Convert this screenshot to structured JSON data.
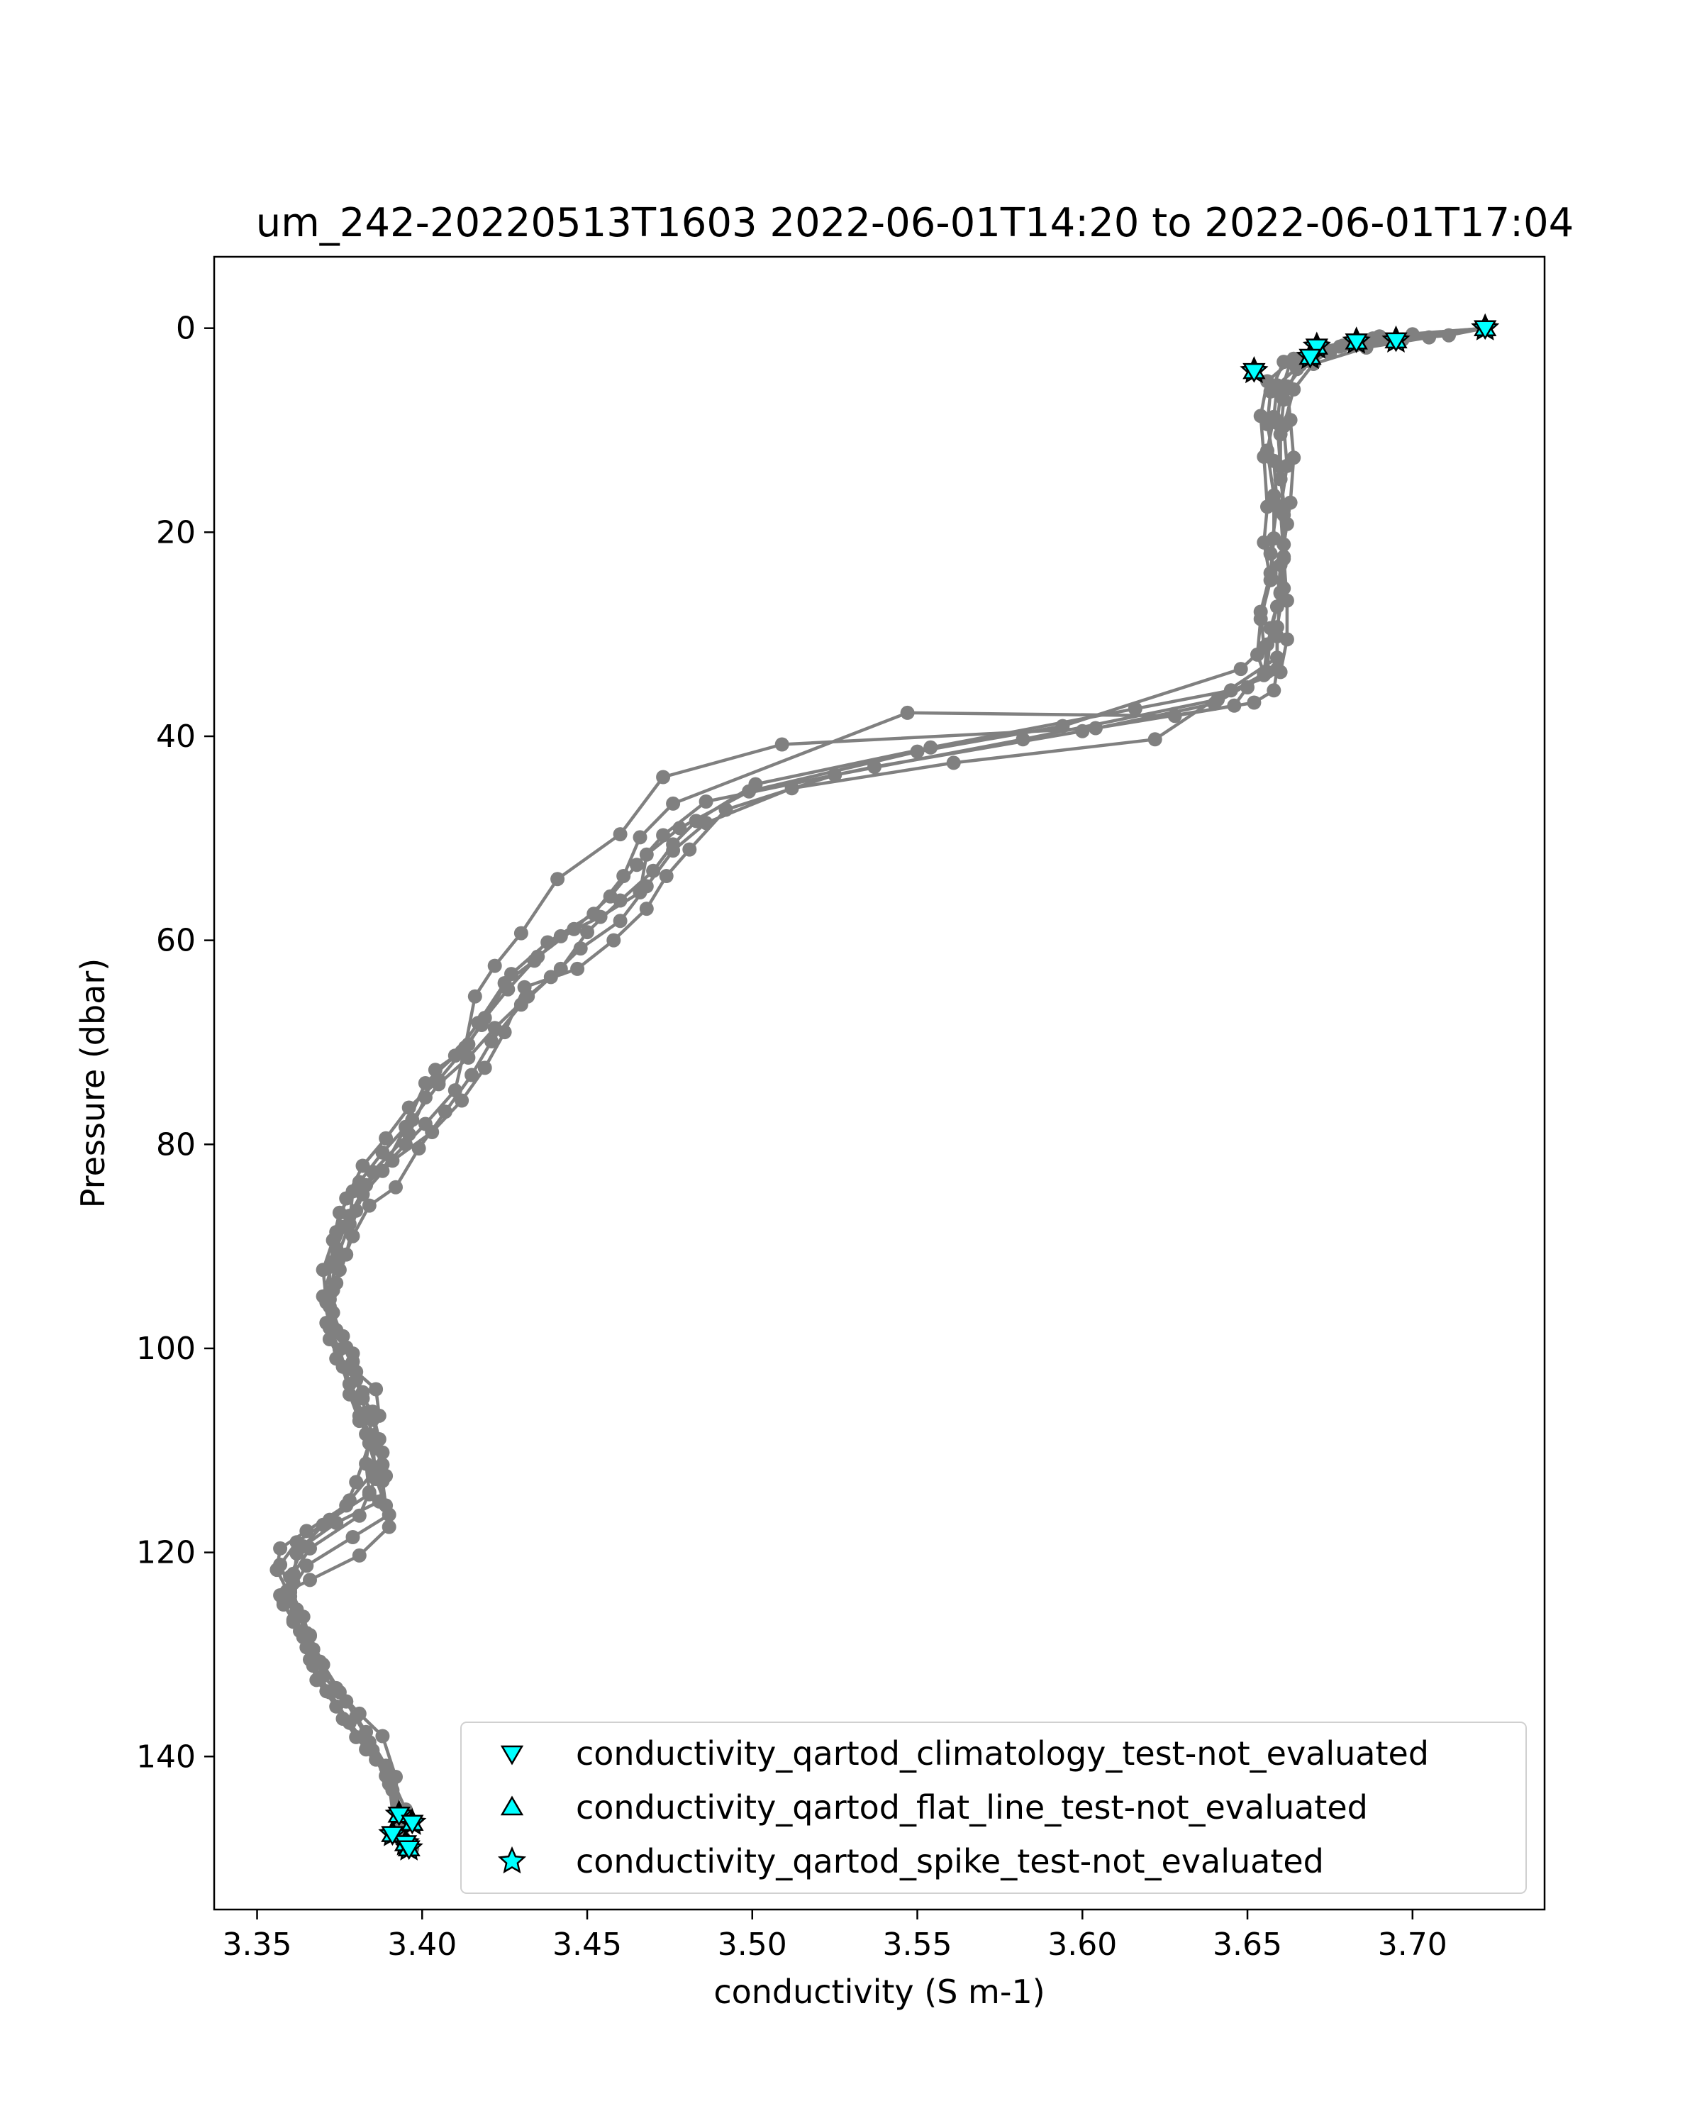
{
  "chart_data": {
    "type": "line",
    "title": "um_242-20220513T1603 2022-06-01T14:20 to 2022-06-01T17:04",
    "xlabel": "conductivity (S m-1)",
    "ylabel": "Pressure (dbar)",
    "xlim": [
      3.337,
      3.74
    ],
    "ylim": [
      155,
      -7
    ],
    "y_inverted": true,
    "grid": false,
    "x_ticks": [
      "3.35",
      "3.40",
      "3.45",
      "3.50",
      "3.55",
      "3.60",
      "3.65",
      "3.70"
    ],
    "y_ticks": [
      "0",
      "20",
      "40",
      "60",
      "80",
      "100",
      "120",
      "140"
    ],
    "colors": {
      "profile_line": "#808080",
      "flag_marker_fill": "#00ffff",
      "flag_marker_edge": "#000000"
    },
    "legend": {
      "placement": "lower-right",
      "entries": [
        {
          "label": "conductivity_qartod_climatology_test-not_evaluated",
          "marker": "triangle-down-icon"
        },
        {
          "label": "conductivity_qartod_flat_line_test-not_evaluated",
          "marker": "triangle-up-icon"
        },
        {
          "label": "conductivity_qartod_spike_test-not_evaluated",
          "marker": "star-icon"
        }
      ]
    },
    "series": [
      {
        "x": [
          3.722,
          3.711,
          3.683,
          3.664,
          3.656,
          3.654,
          3.655,
          3.656,
          3.655,
          3.657,
          3.654,
          3.653,
          3.655,
          3.65,
          3.646,
          3.604,
          3.509,
          3.473,
          3.46,
          3.441,
          3.43,
          3.422,
          3.416,
          3.413,
          3.41,
          3.401,
          3.395,
          3.383,
          3.378,
          3.374,
          3.373,
          3.371,
          3.375,
          3.378,
          3.381,
          3.383,
          3.386,
          3.388,
          3.389,
          3.39,
          3.381,
          3.366,
          3.359,
          3.357,
          3.362,
          3.366,
          3.37,
          3.377,
          3.384,
          3.39,
          3.396
        ],
        "y": [
          0,
          0.7,
          1.5,
          3.0,
          5.2,
          8.6,
          12.6,
          17.5,
          21.0,
          24.7,
          28.5,
          32.0,
          33.8,
          35.2,
          37.0,
          39.2,
          40.8,
          44.0,
          49.6,
          54.0,
          59.3,
          62.5,
          65.5,
          70.5,
          74.7,
          78.0,
          80.0,
          84.0,
          87.0,
          90.2,
          94.3,
          97.5,
          100.1,
          103.5,
          106.6,
          108.4,
          111.7,
          113.0,
          115.4,
          117.5,
          120.3,
          122.7,
          123.8,
          124.2,
          126.0,
          128.2,
          131.0,
          134.6,
          138.6,
          142.0,
          148.5
        ]
      },
      {
        "x": [
          3.722,
          3.695,
          3.678,
          3.661,
          3.657,
          3.656,
          3.658,
          3.659,
          3.657,
          3.66,
          3.659,
          3.659,
          3.658,
          3.652,
          3.628,
          3.547,
          3.476,
          3.466,
          3.461,
          3.452,
          3.438,
          3.427,
          3.418,
          3.412,
          3.404,
          3.401,
          3.396,
          3.385,
          3.38,
          3.377,
          3.374,
          3.373,
          3.377,
          3.38,
          3.383,
          3.385,
          3.385,
          3.386,
          3.39,
          3.379,
          3.365,
          3.36,
          3.361,
          3.364,
          3.367,
          3.372,
          3.378,
          3.384,
          3.389,
          3.394
        ],
        "y": [
          0,
          1.2,
          1.8,
          3.3,
          6.2,
          9.4,
          13.0,
          17.4,
          22.1,
          25.9,
          30.2,
          33.4,
          35.5,
          36.7,
          38.0,
          37.7,
          46.6,
          49.9,
          53.7,
          57.4,
          60.2,
          63.3,
          68.3,
          70.9,
          72.7,
          75.4,
          79.0,
          82.7,
          86.5,
          90.8,
          93.6,
          96.5,
          99.9,
          103.1,
          106.3,
          108.5,
          109.2,
          112.8,
          116.3,
          118.5,
          121.3,
          123.9,
          126.6,
          128.3,
          131.1,
          133.7,
          136.7,
          139.2,
          141.9,
          147.0
        ]
      },
      {
        "x": [
          3.722,
          3.688,
          3.673,
          3.666,
          3.659,
          3.658,
          3.656,
          3.658,
          3.658,
          3.657,
          3.654,
          3.655,
          3.648,
          3.594,
          3.55,
          3.499,
          3.478,
          3.468,
          3.466,
          3.454,
          3.442,
          3.434,
          3.425,
          3.417,
          3.41,
          3.401,
          3.395,
          3.388,
          3.379,
          3.378,
          3.374,
          3.372,
          3.372,
          3.379,
          3.38,
          3.386,
          3.387,
          3.384,
          3.38,
          3.377,
          3.365,
          3.357,
          3.356,
          3.36,
          3.365,
          3.369,
          3.375,
          3.381,
          3.388,
          3.392,
          3.393
        ],
        "y": [
          0,
          1.0,
          1.8,
          3.6,
          5.6,
          8.7,
          12.0,
          16.4,
          20.6,
          24.0,
          27.8,
          31.3,
          33.4,
          39.0,
          41.5,
          45.4,
          49.0,
          51.6,
          55.3,
          57.7,
          59.6,
          62.0,
          64.2,
          68.1,
          71.3,
          74.0,
          78.3,
          82.6,
          84.6,
          87.8,
          91.3,
          94.8,
          98.0,
          100.5,
          102.3,
          104.0,
          106.6,
          109.3,
          113.1,
          115.4,
          117.9,
          119.6,
          121.7,
          124.3,
          127.9,
          130.8,
          133.7,
          135.8,
          138.0,
          142.0,
          145.7
        ]
      },
      {
        "x": [
          3.722,
          3.69,
          3.671,
          3.663,
          3.66,
          3.659,
          3.66,
          3.661,
          3.661,
          3.66,
          3.657,
          3.656,
          3.641,
          3.582,
          3.525,
          3.492,
          3.481,
          3.474,
          3.468,
          3.458,
          3.447,
          3.431,
          3.425,
          3.419,
          3.412,
          3.403,
          3.391,
          3.382,
          3.376,
          3.373,
          3.37,
          3.372,
          3.374,
          3.378,
          3.382,
          3.384,
          3.383,
          3.384,
          3.381,
          3.366,
          3.361,
          3.358,
          3.361,
          3.365,
          3.368,
          3.374,
          3.38,
          3.386,
          3.391,
          3.397
        ],
        "y": [
          0,
          0.8,
          2.1,
          3.3,
          6.5,
          9.3,
          13.6,
          18.3,
          22.6,
          26.0,
          29.4,
          33.7,
          36.4,
          40.3,
          43.8,
          47.2,
          51.1,
          53.7,
          56.9,
          60.0,
          62.8,
          64.6,
          69.0,
          72.5,
          75.7,
          78.8,
          81.6,
          84.9,
          88.1,
          91.5,
          94.9,
          97.7,
          101.0,
          103.5,
          106.4,
          108.6,
          111.3,
          114.1,
          116.4,
          119.6,
          122.1,
          124.8,
          126.8,
          129.3,
          132.5,
          135.1,
          138.1,
          140.3,
          143.3,
          149.0
        ]
      },
      {
        "x": [
          3.722,
          3.7,
          3.679,
          3.668,
          3.662,
          3.663,
          3.664,
          3.663,
          3.661,
          3.661,
          3.659,
          3.659,
          3.622,
          3.561,
          3.512,
          3.486,
          3.476,
          3.468,
          3.46,
          3.448,
          3.439,
          3.43,
          3.421,
          3.415,
          3.407,
          3.399,
          3.392,
          3.384,
          3.379,
          3.375,
          3.372,
          3.372,
          3.376,
          3.378,
          3.381,
          3.386,
          3.388,
          3.389,
          3.387,
          3.374,
          3.364,
          3.36,
          3.358,
          3.363,
          3.366,
          3.371,
          3.376,
          3.383,
          3.389,
          3.393
        ],
        "y": [
          0,
          0.6,
          1.7,
          3.2,
          5.7,
          9.0,
          12.7,
          17.1,
          21.2,
          25.5,
          29.3,
          32.3,
          40.3,
          42.6,
          45.1,
          48.5,
          51.2,
          54.7,
          58.1,
          60.8,
          63.6,
          66.3,
          69.9,
          73.2,
          76.8,
          80.4,
          84.2,
          86.0,
          89.0,
          92.3,
          95.9,
          99.1,
          101.8,
          104.5,
          107.1,
          109.8,
          111.4,
          112.5,
          115.0,
          117.1,
          119.4,
          122.4,
          125.1,
          127.7,
          130.5,
          133.6,
          136.3,
          139.3,
          141.1,
          146.5
        ]
      },
      {
        "x": [
          3.722,
          3.705,
          3.686,
          3.67,
          3.664,
          3.661,
          3.662,
          3.66,
          3.661,
          3.662,
          3.662,
          3.66,
          3.645,
          3.616,
          3.554,
          3.501,
          3.483,
          3.476,
          3.47,
          3.46,
          3.45,
          3.442,
          3.432,
          3.422,
          3.414,
          3.405,
          3.397,
          3.388,
          3.381,
          3.375,
          3.373,
          3.37,
          3.371,
          3.376,
          3.379,
          3.382,
          3.385,
          3.388,
          3.385,
          3.378,
          3.37,
          3.362,
          3.361,
          3.362,
          3.366,
          3.369,
          3.374,
          3.38,
          3.385,
          3.39,
          3.392
        ],
        "y": [
          0,
          0.9,
          1.9,
          3.5,
          6.0,
          9.6,
          13.5,
          17.8,
          22.4,
          26.7,
          30.5,
          33.7,
          35.5,
          37.3,
          41.1,
          44.7,
          48.3,
          50.6,
          53.2,
          56.1,
          59.2,
          62.8,
          65.5,
          68.6,
          71.5,
          74.1,
          77.6,
          80.8,
          83.7,
          86.7,
          89.4,
          92.3,
          95.5,
          98.8,
          102.1,
          104.3,
          107.0,
          110.2,
          112.2,
          114.9,
          117.3,
          120.1,
          123.0,
          125.6,
          128.1,
          130.7,
          133.3,
          136.1,
          139.4,
          142.7,
          147.8
        ]
      },
      {
        "x": [
          3.722,
          3.697,
          3.675,
          3.665,
          3.661,
          3.66,
          3.66,
          3.662,
          3.66,
          3.659,
          3.656,
          3.655,
          3.64,
          3.6,
          3.537,
          3.486,
          3.473,
          3.465,
          3.457,
          3.446,
          3.435,
          3.426,
          3.419,
          3.414,
          3.405,
          3.396,
          3.389,
          3.382,
          3.377,
          3.374,
          3.372,
          3.372,
          3.374,
          3.379,
          3.382,
          3.385,
          3.387,
          3.387,
          3.384,
          3.372,
          3.362,
          3.357,
          3.36,
          3.364,
          3.367,
          3.37,
          3.377,
          3.383,
          3.389,
          3.395
        ],
        "y": [
          0,
          1.1,
          2.4,
          4.0,
          7.0,
          10.4,
          14.8,
          19.2,
          23.2,
          27.3,
          31.0,
          34.0,
          36.8,
          39.5,
          43.0,
          46.4,
          49.7,
          52.6,
          55.7,
          58.9,
          61.6,
          64.8,
          67.6,
          70.2,
          73.7,
          76.4,
          79.4,
          82.1,
          85.3,
          88.6,
          92.0,
          95.2,
          98.2,
          101.3,
          104.9,
          106.2,
          108.9,
          111.6,
          114.3,
          116.8,
          119.0,
          121.2,
          123.6,
          126.3,
          129.5,
          132.1,
          134.6,
          137.6,
          140.9,
          145.2
        ]
      }
    ],
    "flags": [
      {
        "name": "spike_test",
        "x": [
          3.722,
          3.695,
          3.683,
          3.671,
          3.669,
          3.652,
          3.393,
          3.397,
          3.395,
          3.391,
          3.396
        ],
        "y": [
          0,
          1.2,
          1.3,
          1.8,
          2.8,
          4.2,
          145.7,
          146.5,
          148.5,
          147.6,
          149.0
        ]
      },
      {
        "name": "flat_line_test",
        "x": [
          3.722,
          3.695,
          3.683,
          3.671,
          3.669,
          3.652,
          3.393,
          3.397,
          3.395,
          3.391,
          3.396
        ],
        "y": [
          0,
          1.2,
          1.3,
          1.8,
          2.8,
          4.2,
          145.7,
          146.5,
          148.5,
          147.6,
          149.0
        ]
      },
      {
        "name": "climatology_test",
        "x": [
          3.722,
          3.695,
          3.683,
          3.671,
          3.669,
          3.652,
          3.393,
          3.397,
          3.395,
          3.391,
          3.396
        ],
        "y": [
          0,
          1.2,
          1.3,
          1.8,
          2.8,
          4.2,
          145.7,
          146.5,
          148.5,
          147.6,
          149.0
        ]
      }
    ]
  }
}
